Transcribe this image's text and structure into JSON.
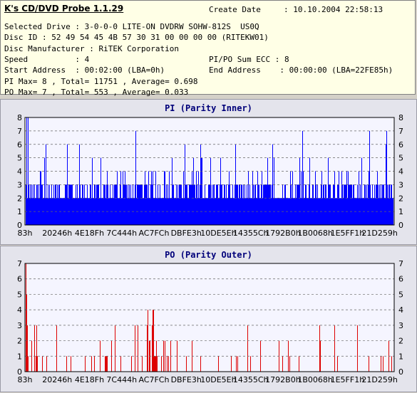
{
  "app": {
    "title": "K's CD/DVD Probe 1.1.29",
    "create_date_label": "Create Date",
    "create_date_value": ": 10.10.2004 22:58:13"
  },
  "info": {
    "selected_drive": "Selected Drive : 3-0-0-0 LITE-ON DVDRW SOHW-812S  US0Q",
    "disc_id": "Disc ID : 52 49 54 45 4B 57 30 31 00 00 00 00 (RITEKW01)",
    "disc_manufacturer": "Disc Manufacturer : RiTEK Corporation",
    "speed": "Speed          : 4",
    "pipo_sum": "PI/PO Sum ECC : 8",
    "start_address": "Start Address  : 00:02:00 (LBA=0h)",
    "end_address": "End Address    : 00:00:00 (LBA=22FE85h)",
    "pi_summary": "PI Max= 8 , Total= 11751 , Average= 0.698",
    "po_summary": "PO Max= 7 , Total= 553 , Average= 0.033"
  },
  "colors": {
    "pi": "#0000ff",
    "po": "#dd0000",
    "plot_bg": "#f5f5ff",
    "title": "#00007a"
  },
  "chart_data": [
    {
      "type": "bar",
      "title": "PI (Parity Inner)",
      "ylim": [
        0,
        8
      ],
      "yticks": [
        0,
        1,
        2,
        3,
        4,
        5,
        6,
        7,
        8
      ],
      "xticks": [
        "83h",
        "20246h",
        "4E18Fh",
        "7C444h",
        "AC7FCh",
        "DBFE3h",
        "10DE5Eh",
        "14355Ch",
        "1792B0h",
        "1B0068h",
        "1E5FF1h",
        "21D259h"
      ],
      "grid": true,
      "series": [
        {
          "color": "#0000ff",
          "baseline_range": [
            2,
            3
          ],
          "max": 8,
          "average": 0.698
        }
      ]
    },
    {
      "type": "bar",
      "title": "PO (Parity Outer)",
      "ylim": [
        0,
        7
      ],
      "yticks": [
        0,
        1,
        2,
        3,
        4,
        5,
        6,
        7
      ],
      "xticks": [
        "83h",
        "20246h",
        "4E18Fh",
        "7C444h",
        "AC7FCh",
        "DBFE3h",
        "10DE5Eh",
        "14355Ch",
        "1792B0h",
        "1B0068h",
        "1E5FF1h",
        "21D259h"
      ],
      "grid": true,
      "series": [
        {
          "color": "#dd0000",
          "max": 7,
          "average": 0.033
        }
      ]
    }
  ]
}
